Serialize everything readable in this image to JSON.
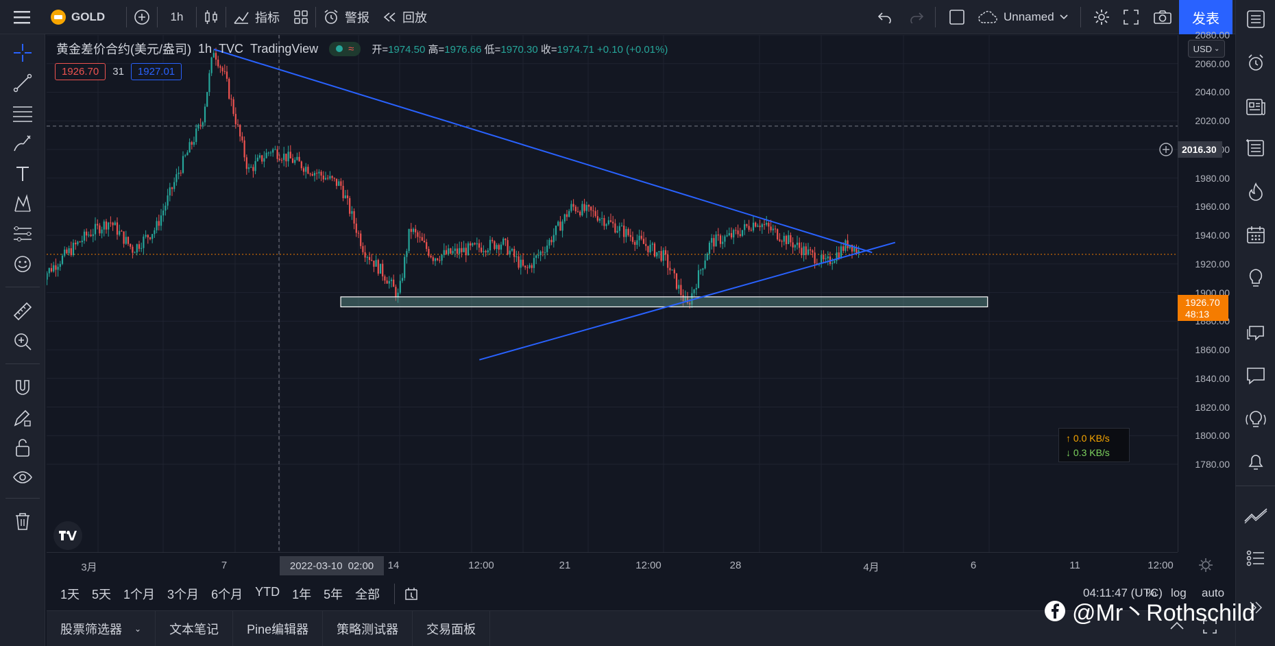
{
  "toolbar": {
    "menu_icon": "hamburger-icon",
    "symbol": "GOLD",
    "interval": "1h",
    "indicators_label": "指标",
    "alert_label": "警报",
    "replay_label": "回放",
    "layout_name": "Unnamed",
    "publish_label": "发表"
  },
  "legend": {
    "title": "黄金差价合约(美元/盎司)",
    "interval": "1h",
    "source": "TVC",
    "provider": "TradingView",
    "open_label": "开=",
    "open": "1974.50",
    "high_label": "高=",
    "high": "1976.66",
    "low_label": "低=",
    "low": "1970.30",
    "close_label": "收=",
    "close": "1974.71",
    "change": "+0.10 (+0.01%)",
    "bid": "1926.70",
    "spread": "31",
    "ask": "1927.01"
  },
  "price_scale": {
    "currency": "USD",
    "labels": [
      "2080.00",
      "2060.00",
      "2040.00",
      "2020.00",
      "2000.00",
      "1980.00",
      "1960.00",
      "1940.00",
      "1920.00",
      "1900.00",
      "1880.00",
      "1860.00",
      "1840.00",
      "1820.00",
      "1800.00",
      "1780.00"
    ],
    "hover_price": "2016.30",
    "current_price": "1926.70",
    "countdown": "48:13"
  },
  "time_scale": {
    "labels": [
      "3月",
      "7",
      "14",
      "12:00",
      "21",
      "12:00",
      "28",
      "4月",
      "6",
      "11",
      "12:00"
    ],
    "cursor_date": "2022-03-10",
    "cursor_time": "02:00"
  },
  "range_bar": {
    "ranges": [
      "1天",
      "5天",
      "1个月",
      "3个月",
      "6个月",
      "YTD",
      "1年",
      "5年",
      "全部"
    ],
    "clock": "04:11:47 (UTC)",
    "percent": "%",
    "log": "log",
    "auto": "auto"
  },
  "bottom_tabs": [
    "股票筛选器",
    "文本笔记",
    "Pine编辑器",
    "策略测试器",
    "交易面板"
  ],
  "net_speed": {
    "up": "0.0 KB/s",
    "down": "0.3 KB/s"
  },
  "watermark": "@Mr丶Rothschild",
  "colors": {
    "up": "#26a69a",
    "down": "#ef5350",
    "trendline": "#2962ff",
    "accent": "#2962ff",
    "current_price": "#f57c00"
  },
  "chart_data": {
    "type": "candlestick",
    "symbol": "GOLD",
    "interval": "1h",
    "ylim": [
      1780,
      2080
    ],
    "price_path": [
      {
        "date": "2022-03-01",
        "price": 1910
      },
      {
        "date": "2022-03-02",
        "price": 1925
      },
      {
        "date": "2022-03-03",
        "price": 1940
      },
      {
        "date": "2022-03-04",
        "price": 1950
      },
      {
        "date": "2022-03-05",
        "price": 1930
      },
      {
        "date": "2022-03-06",
        "price": 1945
      },
      {
        "date": "2022-03-07",
        "price": 1985
      },
      {
        "date": "2022-03-08",
        "price": 2020
      },
      {
        "date": "2022-03-08 12:00",
        "price": 2070
      },
      {
        "date": "2022-03-09",
        "price": 2050
      },
      {
        "date": "2022-03-10",
        "price": 1985
      },
      {
        "date": "2022-03-11",
        "price": 2000
      },
      {
        "date": "2022-03-14",
        "price": 1975
      },
      {
        "date": "2022-03-15",
        "price": 1930
      },
      {
        "date": "2022-03-16",
        "price": 1910
      },
      {
        "date": "2022-03-16 12:00",
        "price": 1897
      },
      {
        "date": "2022-03-17",
        "price": 1945
      },
      {
        "date": "2022-03-18",
        "price": 1925
      },
      {
        "date": "2022-03-21",
        "price": 1935
      },
      {
        "date": "2022-03-22",
        "price": 1915
      },
      {
        "date": "2022-03-23",
        "price": 1935
      },
      {
        "date": "2022-03-24",
        "price": 1960
      },
      {
        "date": "2022-03-25",
        "price": 1955
      },
      {
        "date": "2022-03-28",
        "price": 1925
      },
      {
        "date": "2022-03-29",
        "price": 1890
      },
      {
        "date": "2022-03-30",
        "price": 1935
      },
      {
        "date": "2022-03-31",
        "price": 1940
      },
      {
        "date": "2022-04-01",
        "price": 1950
      },
      {
        "date": "2022-04-04",
        "price": 1920
      },
      {
        "date": "2022-04-05",
        "price": 1935
      },
      {
        "date": "2022-04-05 12:00",
        "price": 1927
      }
    ],
    "drawings": {
      "upper_trendline": {
        "from": {
          "date": "2022-03-08 12:00",
          "price": 2070
        },
        "to": {
          "date": "2022-04-06",
          "price": 1928
        }
      },
      "lower_trendline": {
        "from": {
          "date": "2022-03-20",
          "price": 1853
        },
        "to": {
          "date": "2022-04-07",
          "price": 1935
        }
      },
      "support_zone": {
        "from_date": "2022-03-14",
        "to_date": "2022-04-11",
        "top": 1897,
        "bottom": 1890
      }
    }
  }
}
